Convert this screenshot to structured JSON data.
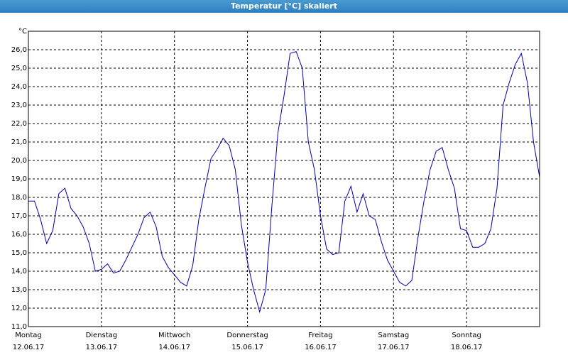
{
  "chart_data": {
    "type": "line",
    "title": "Temperatur [°C] skaliert",
    "y_unit": "°C",
    "x": [
      0,
      2,
      4,
      6,
      8,
      10,
      12,
      14,
      16,
      18,
      20,
      22,
      24,
      26,
      28,
      30,
      32,
      34,
      36,
      38,
      40,
      42,
      44,
      46,
      48,
      50,
      52,
      54,
      56,
      58,
      60,
      62,
      64,
      66,
      68,
      70,
      72,
      74,
      76,
      78,
      80,
      82,
      84,
      86,
      88,
      90,
      92,
      94,
      96,
      98,
      100,
      102,
      104,
      106,
      108,
      110,
      112,
      114,
      116,
      118,
      120,
      122,
      124,
      126,
      128,
      130,
      132,
      134,
      136,
      138,
      140,
      142,
      144,
      146,
      148,
      150,
      152,
      154,
      156,
      158,
      160,
      162,
      164,
      166,
      168
    ],
    "series": [
      {
        "name": "Temperatur",
        "color": "#0000b0",
        "values": [
          17.8,
          17.8,
          16.8,
          15.5,
          16.2,
          18.2,
          18.5,
          17.4,
          17.0,
          16.4,
          15.5,
          14.0,
          14.1,
          14.4,
          13.9,
          14.0,
          14.6,
          15.3,
          16.0,
          16.9,
          17.2,
          16.4,
          14.8,
          14.2,
          13.8,
          13.4,
          13.2,
          14.3,
          16.8,
          18.5,
          20.1,
          20.6,
          21.2,
          20.8,
          19.5,
          16.5,
          14.5,
          13.0,
          11.8,
          13.0,
          17.5,
          21.5,
          23.5,
          25.8,
          25.9,
          25.0,
          21.0,
          19.5,
          17.0,
          15.2,
          14.9,
          15.0,
          17.8,
          18.6,
          17.2,
          18.2,
          17.0,
          16.8,
          15.6,
          14.6,
          14.0,
          13.4,
          13.2,
          13.5,
          15.8,
          17.8,
          19.5,
          20.5,
          20.7,
          19.5,
          18.5,
          16.3,
          16.2,
          15.3,
          15.3,
          15.5,
          16.3,
          18.5,
          23.0,
          24.2,
          25.2,
          25.8,
          24.2,
          21.0,
          19.1
        ]
      }
    ],
    "xlim": [
      0,
      168
    ],
    "ylim": [
      11,
      27
    ],
    "xticks": [
      {
        "value": 0,
        "label": "Montag"
      },
      {
        "value": 24,
        "label": "Dienstag"
      },
      {
        "value": 48,
        "label": "Mittwoch"
      },
      {
        "value": 72,
        "label": "Donnerstag"
      },
      {
        "value": 96,
        "label": "Freitag"
      },
      {
        "value": 120,
        "label": "Samstag"
      },
      {
        "value": 144,
        "label": "Sonntag"
      }
    ],
    "xtick_dates": [
      "12.06.17",
      "13.06.17",
      "14.06.17",
      "15.06.17",
      "16.06.17",
      "17.06.17",
      "18.06.17"
    ],
    "yticks": [
      {
        "value": 11,
        "label": "11,0"
      },
      {
        "value": 12,
        "label": "12,0"
      },
      {
        "value": 13,
        "label": "13,0"
      },
      {
        "value": 14,
        "label": "14,0"
      },
      {
        "value": 15,
        "label": "15,0"
      },
      {
        "value": 16,
        "label": "16,0"
      },
      {
        "value": 17,
        "label": "17,0"
      },
      {
        "value": 18,
        "label": "18,0"
      },
      {
        "value": 19,
        "label": "19,0"
      },
      {
        "value": 20,
        "label": "20,0"
      },
      {
        "value": 21,
        "label": "21,0"
      },
      {
        "value": 22,
        "label": "22,0"
      },
      {
        "value": 23,
        "label": "23,0"
      },
      {
        "value": 24,
        "label": "24,0"
      },
      {
        "value": 25,
        "label": "25,0"
      },
      {
        "value": 26,
        "label": "26,0"
      }
    ],
    "grid": true
  }
}
